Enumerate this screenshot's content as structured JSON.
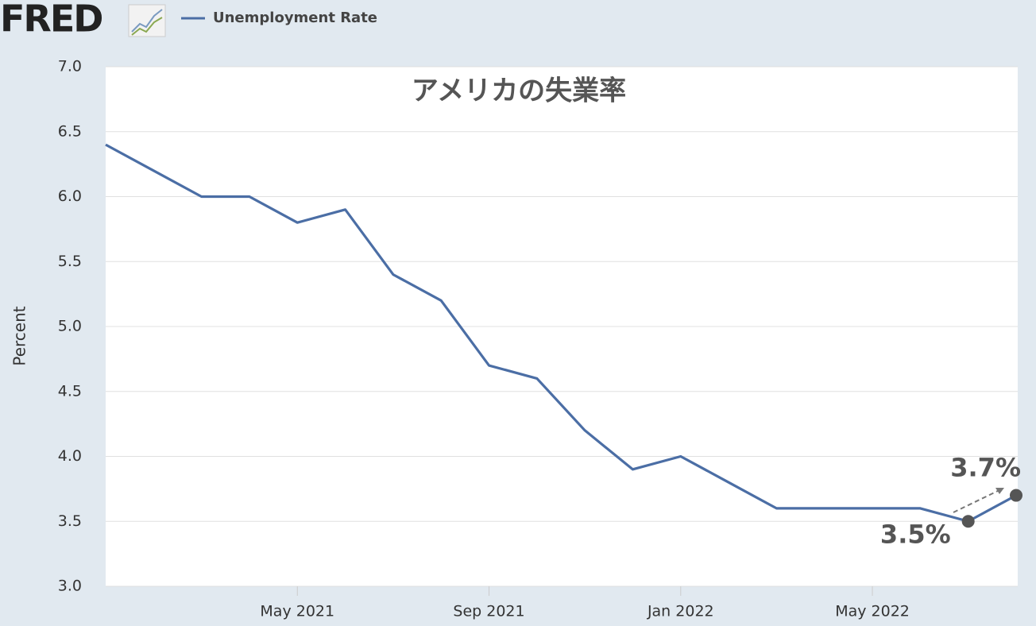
{
  "brand": "FRED",
  "chart_data": {
    "type": "line",
    "title": "アメリカの失業率",
    "y_label": "Percent",
    "x": [
      "2021-01",
      "2021-02",
      "2021-03",
      "2021-04",
      "2021-05",
      "2021-06",
      "2021-07",
      "2021-08",
      "2021-09",
      "2021-10",
      "2021-11",
      "2021-12",
      "2022-01",
      "2022-02",
      "2022-03",
      "2022-04",
      "2022-05",
      "2022-06",
      "2022-07",
      "2022-08"
    ],
    "series": [
      {
        "name": "Unemployment Rate",
        "color": "#4b6ea5",
        "values": [
          6.4,
          6.2,
          6.0,
          6.0,
          5.8,
          5.9,
          5.4,
          5.2,
          4.7,
          4.6,
          4.2,
          3.9,
          4.0,
          3.8,
          3.6,
          3.6,
          3.6,
          3.6,
          3.5,
          3.7
        ],
        "value_labels": [
          null,
          null,
          null,
          null,
          null,
          null,
          null,
          null,
          null,
          null,
          null,
          null,
          null,
          null,
          null,
          null,
          null,
          null,
          "3.5%",
          "3.7%"
        ]
      }
    ],
    "xlim": [
      "2021-01",
      "2022-08"
    ],
    "xticks": [
      {
        "value": "2021-05",
        "label": "May 2021"
      },
      {
        "value": "2021-09",
        "label": "Sep 2021"
      },
      {
        "value": "2022-01",
        "label": "Jan 2022"
      },
      {
        "value": "2022-05",
        "label": "May 2022"
      }
    ],
    "ylim": [
      3,
      7
    ],
    "yticks": [
      {
        "value": 3,
        "label": "3.0"
      },
      3.5,
      {
        "value": 4,
        "label": "4.0"
      },
      4.5,
      {
        "value": 5,
        "label": "5.0"
      },
      5.5,
      {
        "value": 6,
        "label": "6.0"
      },
      6.5,
      {
        "value": 7,
        "label": "7.0"
      }
    ],
    "grid": true
  }
}
